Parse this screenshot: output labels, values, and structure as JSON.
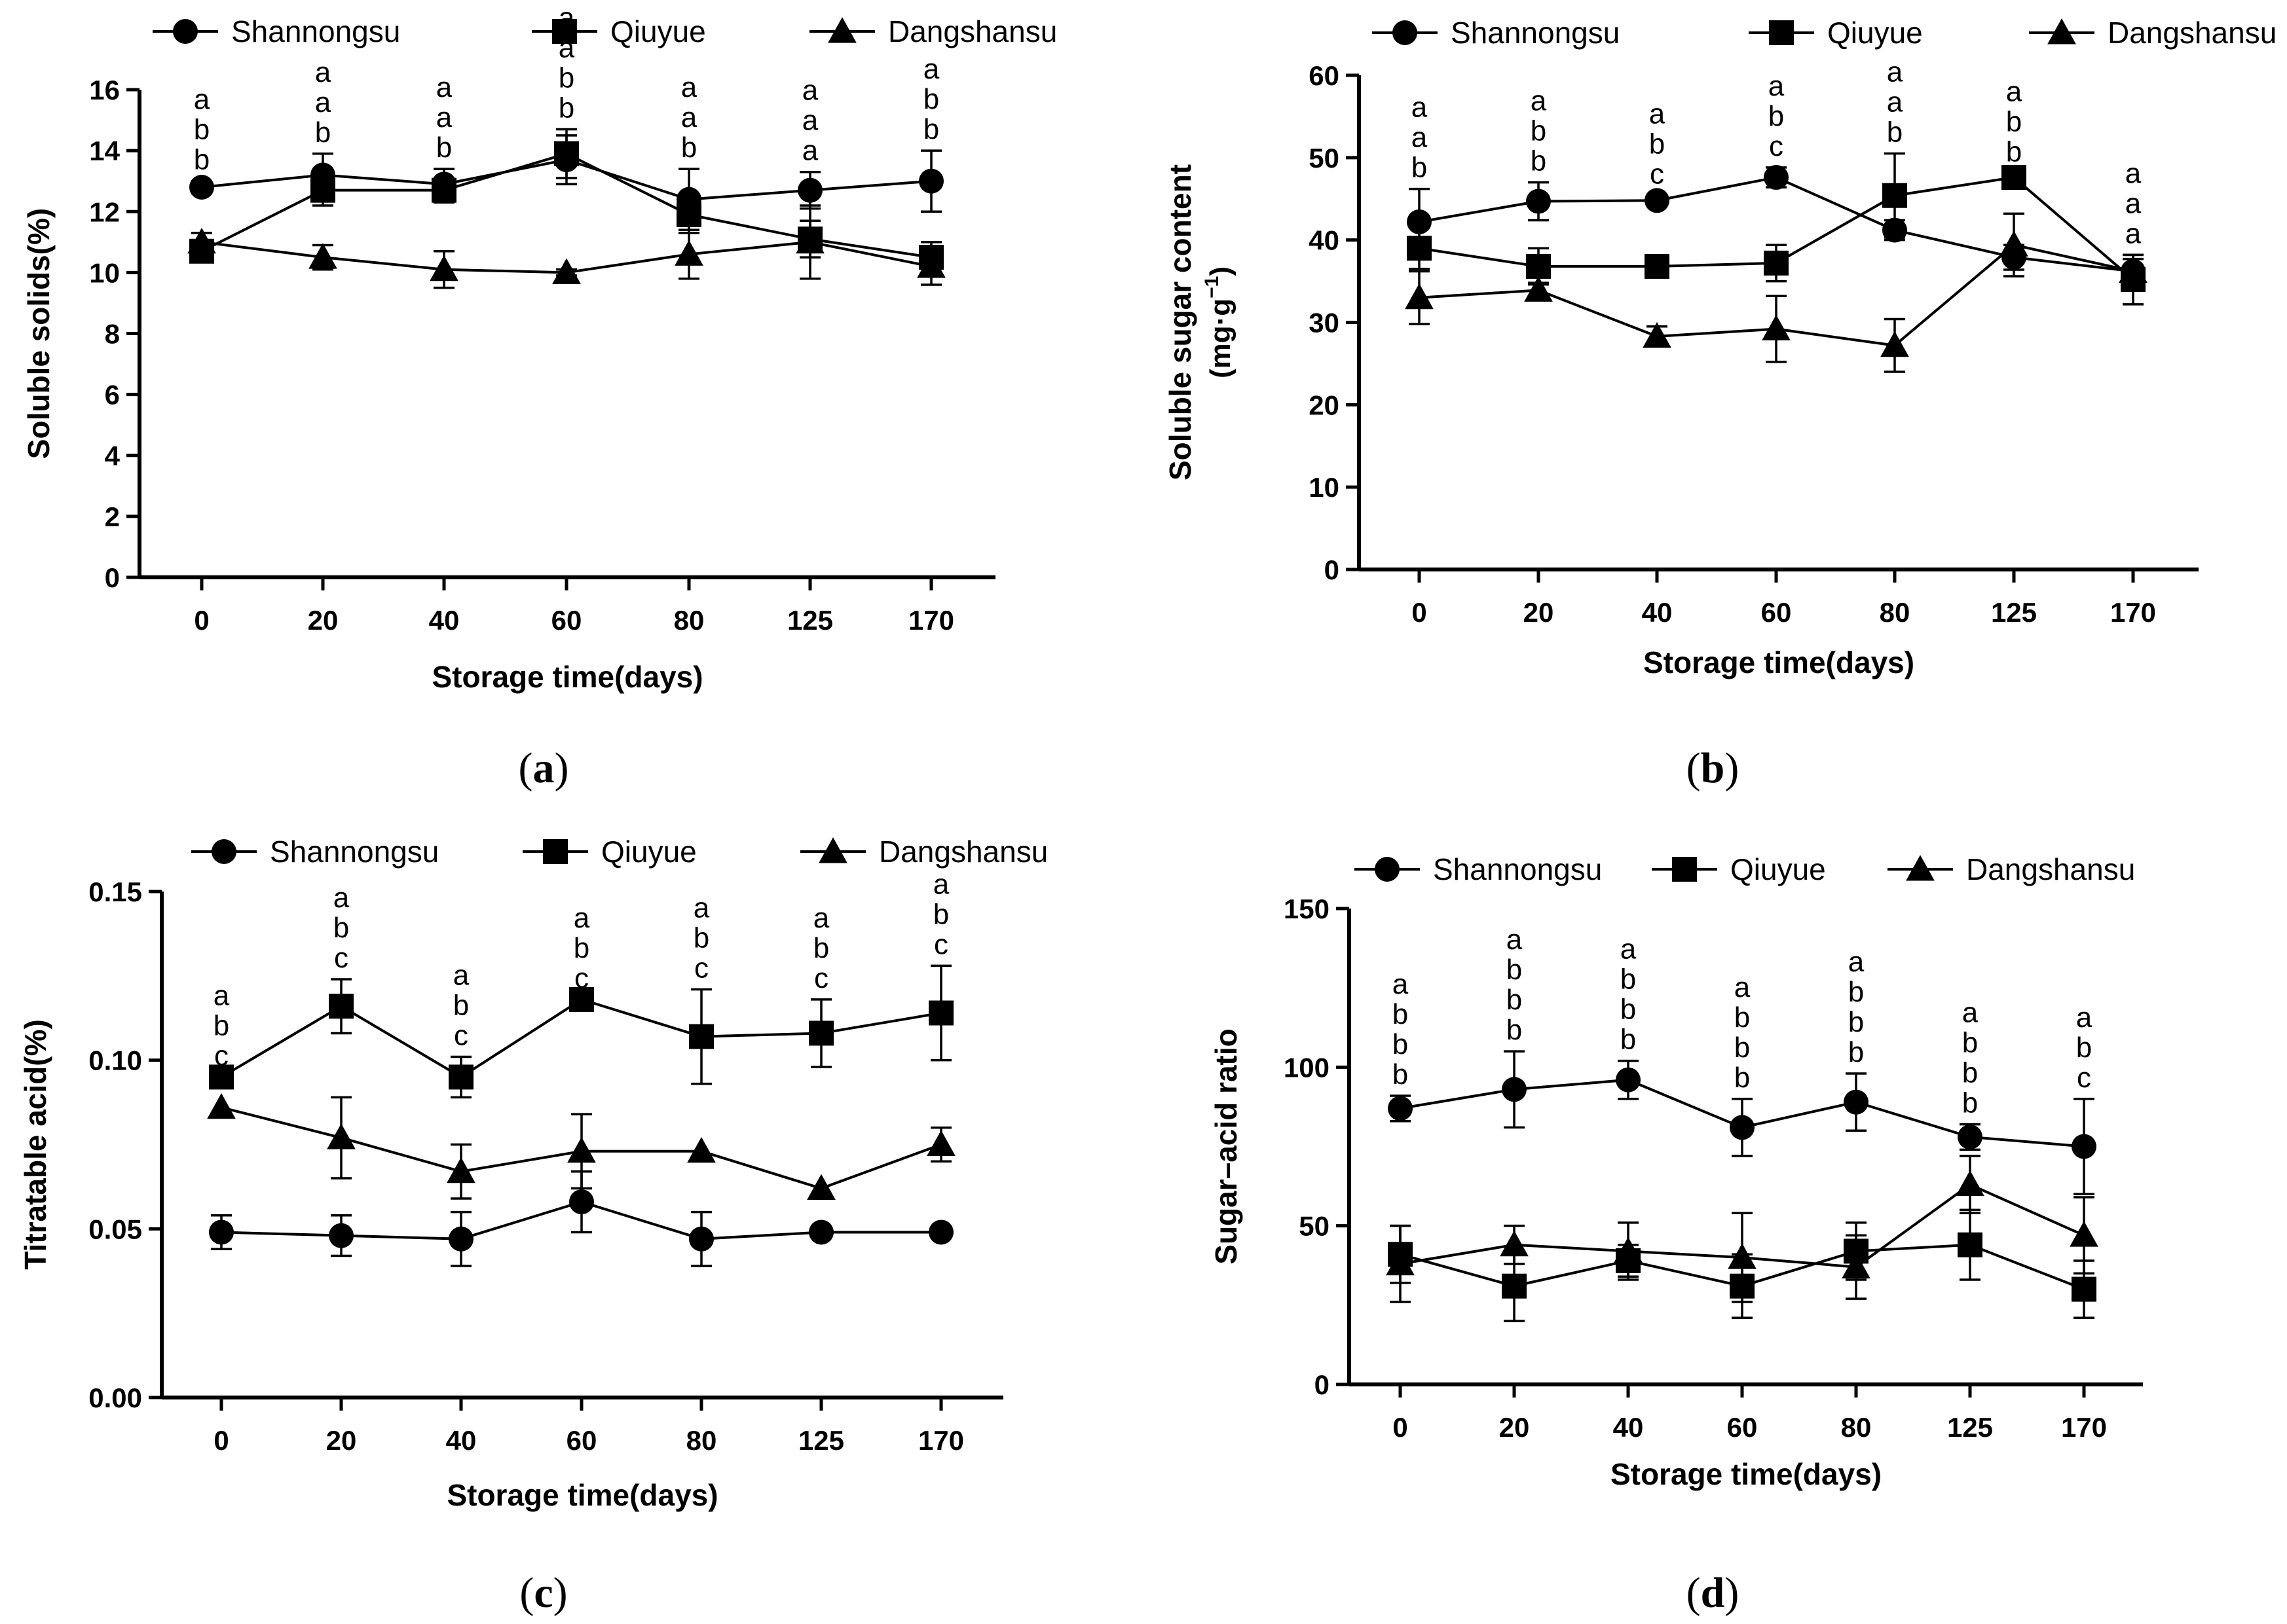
{
  "chart_data": [
    {
      "panel": "(a)",
      "type": "line",
      "x": [
        "0",
        "20",
        "40",
        "60",
        "80",
        "125",
        "170"
      ],
      "xlabel": "Storage time(days)",
      "ylabel": "Soluble solids(%)",
      "ylim": [
        0,
        16
      ],
      "yticks": [
        "0",
        "2",
        "4",
        "6",
        "8",
        "10",
        "12",
        "14",
        "16"
      ],
      "legend_position": "top",
      "grid": false,
      "series": [
        {
          "name": "Shannongsu",
          "marker": "circle",
          "values": [
            12.8,
            13.2,
            12.9,
            13.7,
            12.4,
            12.7,
            13.0
          ],
          "errors": [
            0.2,
            0.7,
            0.5,
            0.8,
            1.0,
            0.6,
            1.0
          ]
        },
        {
          "name": "Qiuyue",
          "marker": "square",
          "values": [
            10.7,
            12.7,
            12.7,
            13.9,
            11.9,
            11.1,
            10.5
          ],
          "errors": [
            0.3,
            0.5,
            0.4,
            0.8,
            0.6,
            0.6,
            0.5
          ]
        },
        {
          "name": "Dangshansu",
          "marker": "triangle",
          "values": [
            11.0,
            10.5,
            10.1,
            10.0,
            10.6,
            11.0,
            10.2
          ],
          "errors": [
            0.3,
            0.4,
            0.6,
            0.1,
            0.8,
            1.2,
            0.6
          ]
        }
      ],
      "annotations": [
        [
          "a",
          "b",
          "b"
        ],
        [
          "a",
          "a",
          "b"
        ],
        [
          "a",
          "a",
          "b"
        ],
        [
          "a",
          "a",
          "b",
          "b"
        ],
        [
          "a",
          "a",
          "b"
        ],
        [
          "a",
          "a",
          "a"
        ],
        [
          "a",
          "b",
          "b"
        ]
      ]
    },
    {
      "panel": "(b)",
      "type": "line",
      "x": [
        "0",
        "20",
        "40",
        "60",
        "80",
        "125",
        "170"
      ],
      "xlabel": "Storage time(days)",
      "ylabel": "Soluble sugar content",
      "ylabel_unit": "(mg·g",
      "ylabel_unit_sup": "−1",
      "ylabel_unit_close": ")",
      "ylim": [
        0,
        60
      ],
      "yticks": [
        "0",
        "10",
        "20",
        "30",
        "40",
        "50",
        "60"
      ],
      "legend_position": "top",
      "grid": false,
      "series": [
        {
          "name": "Shannongsu",
          "marker": "circle",
          "values": [
            42.2,
            44.7,
            44.8,
            47.6,
            41.2,
            37.9,
            36.2
          ],
          "errors": [
            4.0,
            2.3,
            0.6,
            1.2,
            1.2,
            1.5,
            1.5
          ]
        },
        {
          "name": "Qiuyue",
          "marker": "square",
          "values": [
            39.0,
            36.8,
            36.8,
            37.2,
            45.4,
            47.6,
            35.2
          ],
          "errors": [
            2.5,
            2.2,
            0.8,
            2.2,
            5.1,
            0.5,
            3.0
          ]
        },
        {
          "name": "Dangshansu",
          "marker": "triangle",
          "values": [
            33.0,
            33.9,
            28.3,
            29.2,
            27.2,
            39.4,
            36.2
          ],
          "errors": [
            3.2,
            0.9,
            1.2,
            4.0,
            3.2,
            3.8,
            2.0
          ]
        }
      ],
      "annotations": [
        [
          "a",
          "a",
          "b"
        ],
        [
          "a",
          "b",
          "b"
        ],
        [
          "a",
          "b",
          "c"
        ],
        [
          "a",
          "b",
          "c"
        ],
        [
          "a",
          "a",
          "b"
        ],
        [
          "a",
          "b",
          "b"
        ],
        [
          "a",
          "a",
          "a"
        ]
      ]
    },
    {
      "panel": "(c)",
      "type": "line",
      "x": [
        "0",
        "20",
        "40",
        "60",
        "80",
        "125",
        "170"
      ],
      "xlabel": "Storage time(days)",
      "ylabel": "Titratable acid(%)",
      "ylim": [
        0,
        0.15
      ],
      "yticks": [
        "0.00",
        "0.05",
        "0.10",
        "0.15"
      ],
      "legend_position": "top",
      "grid": false,
      "series": [
        {
          "name": "Shannongsu",
          "marker": "circle",
          "values": [
            0.049,
            0.048,
            0.047,
            0.058,
            0.047,
            0.049,
            0.049
          ],
          "errors": [
            0.005,
            0.006,
            0.008,
            0.009,
            0.008,
            0.0,
            0.0
          ]
        },
        {
          "name": "Qiuyue",
          "marker": "square",
          "values": [
            0.095,
            0.116,
            0.095,
            0.118,
            0.107,
            0.108,
            0.114
          ],
          "errors": [
            0.0,
            0.008,
            0.006,
            0.0,
            0.014,
            0.01,
            0.014
          ]
        },
        {
          "name": "Dangshansu",
          "marker": "triangle",
          "values": [
            0.086,
            0.077,
            0.067,
            0.073,
            0.073,
            0.062,
            0.075
          ],
          "errors": [
            0.0,
            0.012,
            0.008,
            0.011,
            0.0,
            0.0,
            0.005
          ]
        }
      ],
      "annotations": [
        [
          "a",
          "b",
          "c"
        ],
        [
          "a",
          "b",
          "c"
        ],
        [
          "a",
          "b",
          "c"
        ],
        [
          "a",
          "b",
          "c"
        ],
        [
          "a",
          "b",
          "c"
        ],
        [
          "a",
          "b",
          "c"
        ],
        [
          "a",
          "b",
          "c"
        ]
      ]
    },
    {
      "panel": "(d)",
      "type": "line",
      "x": [
        "0",
        "20",
        "40",
        "60",
        "80",
        "125",
        "170"
      ],
      "xlabel": "Storage time(days)",
      "ylabel": "Sugar–acid ratio",
      "ylim": [
        0,
        150
      ],
      "yticks": [
        "0",
        "50",
        "100",
        "150"
      ],
      "legend_position": "top",
      "grid": false,
      "series": [
        {
          "name": "Shannongsu",
          "marker": "circle",
          "values": [
            87,
            93,
            96,
            81,
            89,
            78,
            75
          ],
          "errors": [
            4,
            12,
            6,
            9,
            9,
            4,
            15
          ]
        },
        {
          "name": "Qiuyue",
          "marker": "square",
          "values": [
            41,
            31,
            39,
            31,
            42,
            44,
            30
          ],
          "errors": [
            9,
            11,
            5,
            10,
            9,
            11,
            9
          ]
        },
        {
          "name": "Dangshansu",
          "marker": "triangle",
          "values": [
            38,
            44,
            42,
            40,
            37,
            63,
            47
          ],
          "errors": [
            12,
            6,
            9,
            14,
            10,
            9,
            12
          ]
        }
      ],
      "annotations": [
        [
          "a",
          "b",
          "b",
          "b"
        ],
        [
          "a",
          "b",
          "b",
          "b"
        ],
        [
          "a",
          "b",
          "b",
          "b"
        ],
        [
          "a",
          "b",
          "b",
          "b"
        ],
        [
          "a",
          "b",
          "b",
          "b"
        ],
        [
          "a",
          "b",
          "b",
          "b"
        ],
        [
          "a",
          "b",
          "c"
        ]
      ]
    }
  ]
}
